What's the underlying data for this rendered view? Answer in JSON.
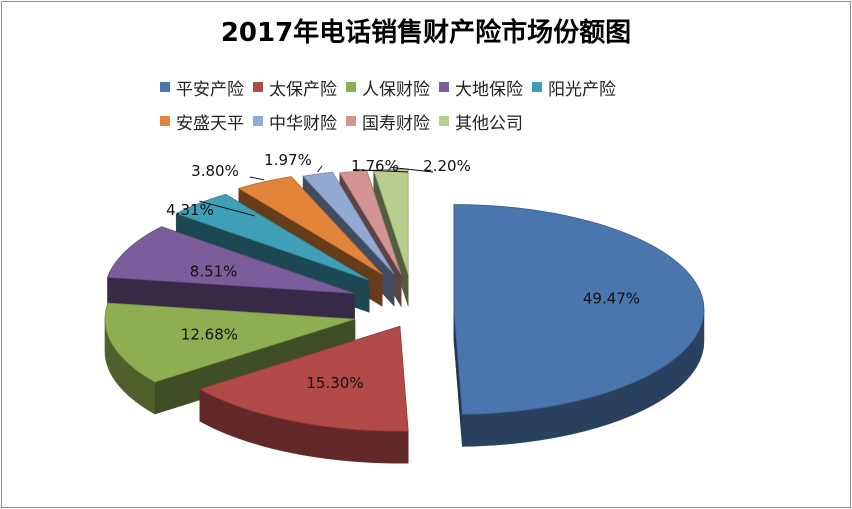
{
  "chart_data": {
    "type": "pie",
    "title": "2017年电话销售财产险市场份额图",
    "series": [
      {
        "name": "平安产险",
        "value": 49.47,
        "label": "49.47%",
        "color": "#4a76ad"
      },
      {
        "name": "太保产险",
        "value": 15.3,
        "label": "15.30%",
        "color": "#b24a48"
      },
      {
        "name": "人保财险",
        "value": 12.68,
        "label": "12.68%",
        "color": "#8fae52"
      },
      {
        "name": "大地保险",
        "value": 8.51,
        "label": "8.51%",
        "color": "#7b5d9c"
      },
      {
        "name": "阳光产险",
        "value": 4.31,
        "label": "4.31%",
        "color": "#3e9fb6"
      },
      {
        "name": "安盛天平",
        "value": 3.8,
        "label": "3.80%",
        "color": "#e2853a"
      },
      {
        "name": "中华财险",
        "value": 1.97,
        "label": "1.97%",
        "color": "#92a9d4"
      },
      {
        "name": "国寿财险",
        "value": 1.76,
        "label": "1.76%",
        "color": "#d39593"
      },
      {
        "name": "其他公司",
        "value": 2.2,
        "label": "2.20%",
        "color": "#b8cd8f"
      }
    ],
    "legend_position": "top"
  }
}
